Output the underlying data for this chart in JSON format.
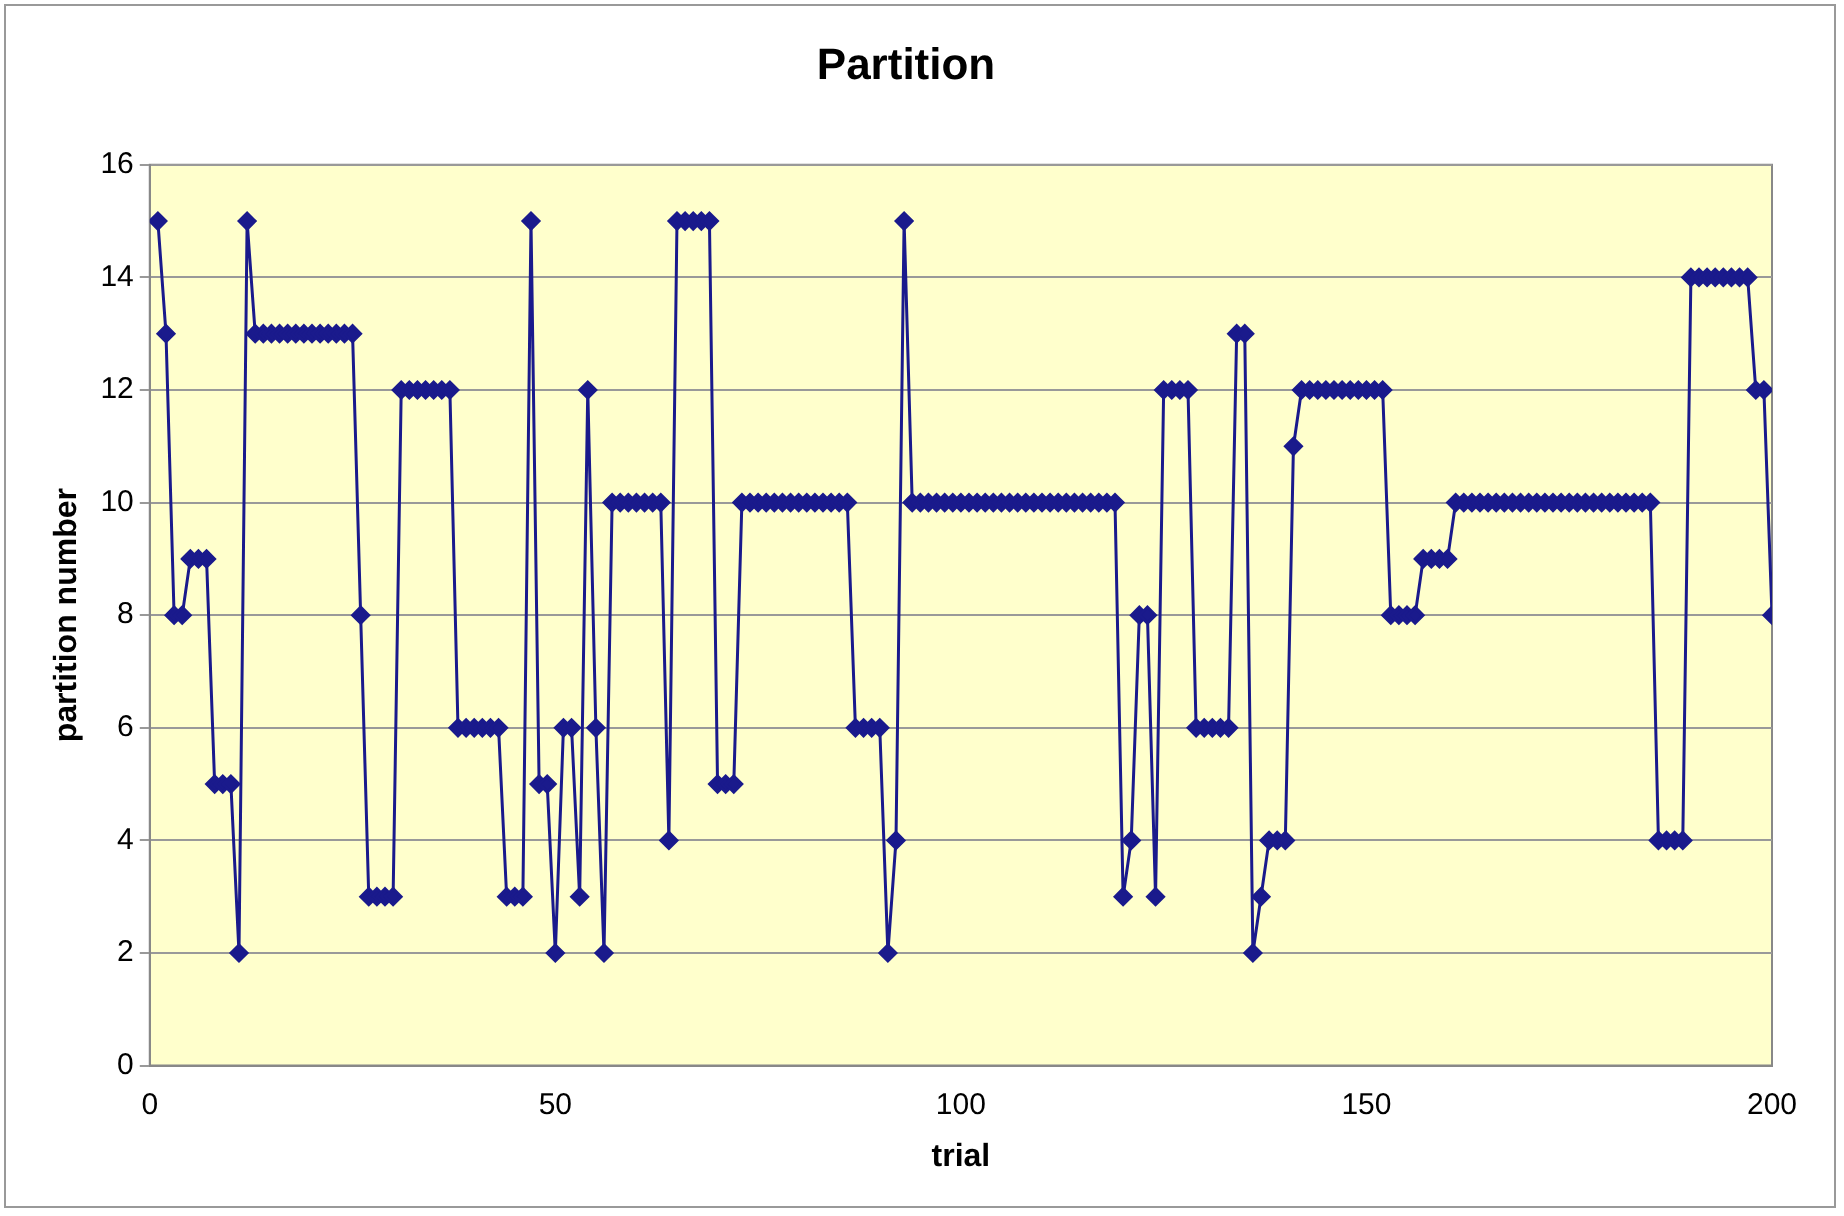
{
  "chart_data": {
    "type": "line",
    "title": "Partition",
    "xlabel": "trial",
    "ylabel": "partition number",
    "x": [
      1,
      2,
      3,
      4,
      5,
      6,
      7,
      8,
      9,
      10,
      11,
      12,
      13,
      14,
      15,
      16,
      17,
      18,
      19,
      20,
      21,
      22,
      23,
      24,
      25,
      26,
      27,
      28,
      29,
      30,
      31,
      32,
      33,
      34,
      35,
      36,
      37,
      38,
      39,
      40,
      41,
      42,
      43,
      44,
      45,
      46,
      47,
      48,
      49,
      50,
      51,
      52,
      53,
      54,
      55,
      56,
      57,
      58,
      59,
      60,
      61,
      62,
      63,
      64,
      65,
      66,
      67,
      68,
      69,
      70,
      71,
      72,
      73,
      74,
      75,
      76,
      77,
      78,
      79,
      80,
      81,
      82,
      83,
      84,
      85,
      86,
      87,
      88,
      89,
      90,
      91,
      92,
      93,
      94,
      95,
      96,
      97,
      98,
      99,
      100,
      101,
      102,
      103,
      104,
      105,
      106,
      107,
      108,
      109,
      110,
      111,
      112,
      113,
      114,
      115,
      116,
      117,
      118,
      119,
      120,
      121,
      122,
      123,
      124,
      125,
      126,
      127,
      128,
      129,
      130,
      131,
      132,
      133,
      134,
      135,
      136,
      137,
      138,
      139,
      140,
      141,
      142,
      143,
      144,
      145,
      146,
      147,
      148,
      149,
      150,
      151,
      152,
      153,
      154,
      155,
      156,
      157,
      158,
      159,
      160,
      161,
      162,
      163,
      164,
      165,
      166,
      167,
      168,
      169,
      170,
      171,
      172,
      173,
      174,
      175,
      176,
      177,
      178,
      179,
      180,
      181,
      182,
      183,
      184,
      185,
      186,
      187,
      188,
      189,
      190,
      191,
      192,
      193,
      194,
      195,
      196,
      197,
      198,
      199,
      200
    ],
    "series": [
      {
        "color": "#1a1a8c",
        "values": [
          15,
          13,
          8,
          8,
          9,
          9,
          9,
          5,
          5,
          5,
          2,
          15,
          13,
          13,
          13,
          13,
          13,
          13,
          13,
          13,
          13,
          13,
          13,
          13,
          13,
          8,
          3,
          3,
          3,
          3,
          12,
          12,
          12,
          12,
          12,
          12,
          12,
          6,
          6,
          6,
          6,
          6,
          6,
          3,
          3,
          3,
          15,
          5,
          5,
          2,
          6,
          6,
          3,
          12,
          6,
          2,
          10,
          10,
          10,
          10,
          10,
          10,
          10,
          4,
          15,
          15,
          15,
          15,
          15,
          5,
          5,
          5,
          10,
          10,
          10,
          10,
          10,
          10,
          10,
          10,
          10,
          10,
          10,
          10,
          10,
          10,
          6,
          6,
          6,
          6,
          2,
          4,
          15,
          10,
          10,
          10,
          10,
          10,
          10,
          10,
          10,
          10,
          10,
          10,
          10,
          10,
          10,
          10,
          10,
          10,
          10,
          10,
          10,
          10,
          10,
          10,
          10,
          10,
          10,
          3,
          4,
          8,
          8,
          3,
          12,
          12,
          12,
          12,
          6,
          6,
          6,
          6,
          6,
          13,
          13,
          2,
          3,
          4,
          4,
          4,
          11,
          12,
          12,
          12,
          12,
          12,
          12,
          12,
          12,
          12,
          12,
          12,
          8,
          8,
          8,
          8,
          9,
          9,
          9,
          9,
          10,
          10,
          10,
          10,
          10,
          10,
          10,
          10,
          10,
          10,
          10,
          10,
          10,
          10,
          10,
          10,
          10,
          10,
          10,
          10,
          10,
          10,
          10,
          10,
          10,
          4,
          4,
          4,
          4,
          14,
          14,
          14,
          14,
          14,
          14,
          14,
          14,
          12,
          12,
          8
        ]
      }
    ],
    "xlim": [
      0,
      200
    ],
    "xticks": [
      0,
      50,
      100,
      150,
      200
    ],
    "ylim": [
      0,
      16
    ],
    "yticks": [
      0,
      2,
      4,
      6,
      8,
      10,
      12,
      14,
      16
    ],
    "grid": "y",
    "legend": false,
    "marker": "diamond",
    "line_style": "solid"
  }
}
